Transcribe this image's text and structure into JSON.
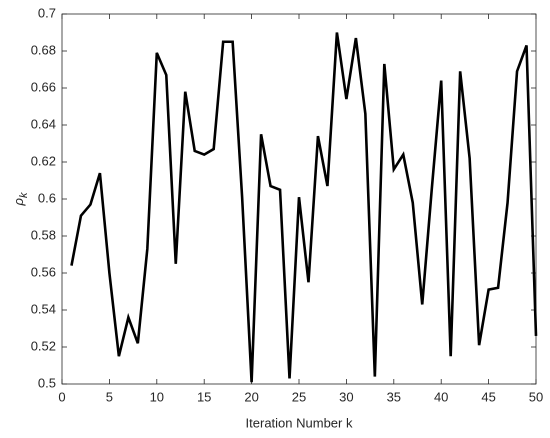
{
  "chart_data": {
    "type": "line",
    "xlabel": "Iteration Number k",
    "ylabel": {
      "symbol": "ρ",
      "subscript": "k"
    },
    "x": [
      1,
      2,
      3,
      4,
      5,
      6,
      7,
      8,
      9,
      10,
      11,
      12,
      13,
      14,
      15,
      16,
      17,
      18,
      19,
      20,
      21,
      22,
      23,
      24,
      25,
      26,
      27,
      28,
      29,
      30,
      31,
      32,
      33,
      34,
      35,
      36,
      37,
      38,
      39,
      40,
      41,
      42,
      43,
      44,
      45,
      46,
      47,
      48,
      49,
      50
    ],
    "series": [
      {
        "color": "#000000",
        "values": [
          0.564,
          0.591,
          0.597,
          0.614,
          0.56,
          0.515,
          0.536,
          0.522,
          0.573,
          0.679,
          0.667,
          0.565,
          0.658,
          0.626,
          0.624,
          0.627,
          0.685,
          0.685,
          0.601,
          0.501,
          0.635,
          0.607,
          0.605,
          0.503,
          0.601,
          0.555,
          0.634,
          0.607,
          0.69,
          0.654,
          0.687,
          0.646,
          0.504,
          0.673,
          0.616,
          0.624,
          0.598,
          0.543,
          0.605,
          0.664,
          0.515,
          0.669,
          0.622,
          0.521,
          0.551,
          0.552,
          0.598,
          0.669,
          0.683,
          0.526
        ]
      }
    ],
    "xlim": [
      0,
      50
    ],
    "xticks": [
      0,
      5,
      10,
      15,
      20,
      25,
      30,
      35,
      40,
      45,
      50
    ],
    "ylim": [
      0.5,
      0.7
    ],
    "yticks": [
      0.5,
      0.52,
      0.54,
      0.56,
      0.58,
      0.6,
      0.62,
      0.64,
      0.66,
      0.68,
      0.7
    ],
    "grid": false
  }
}
